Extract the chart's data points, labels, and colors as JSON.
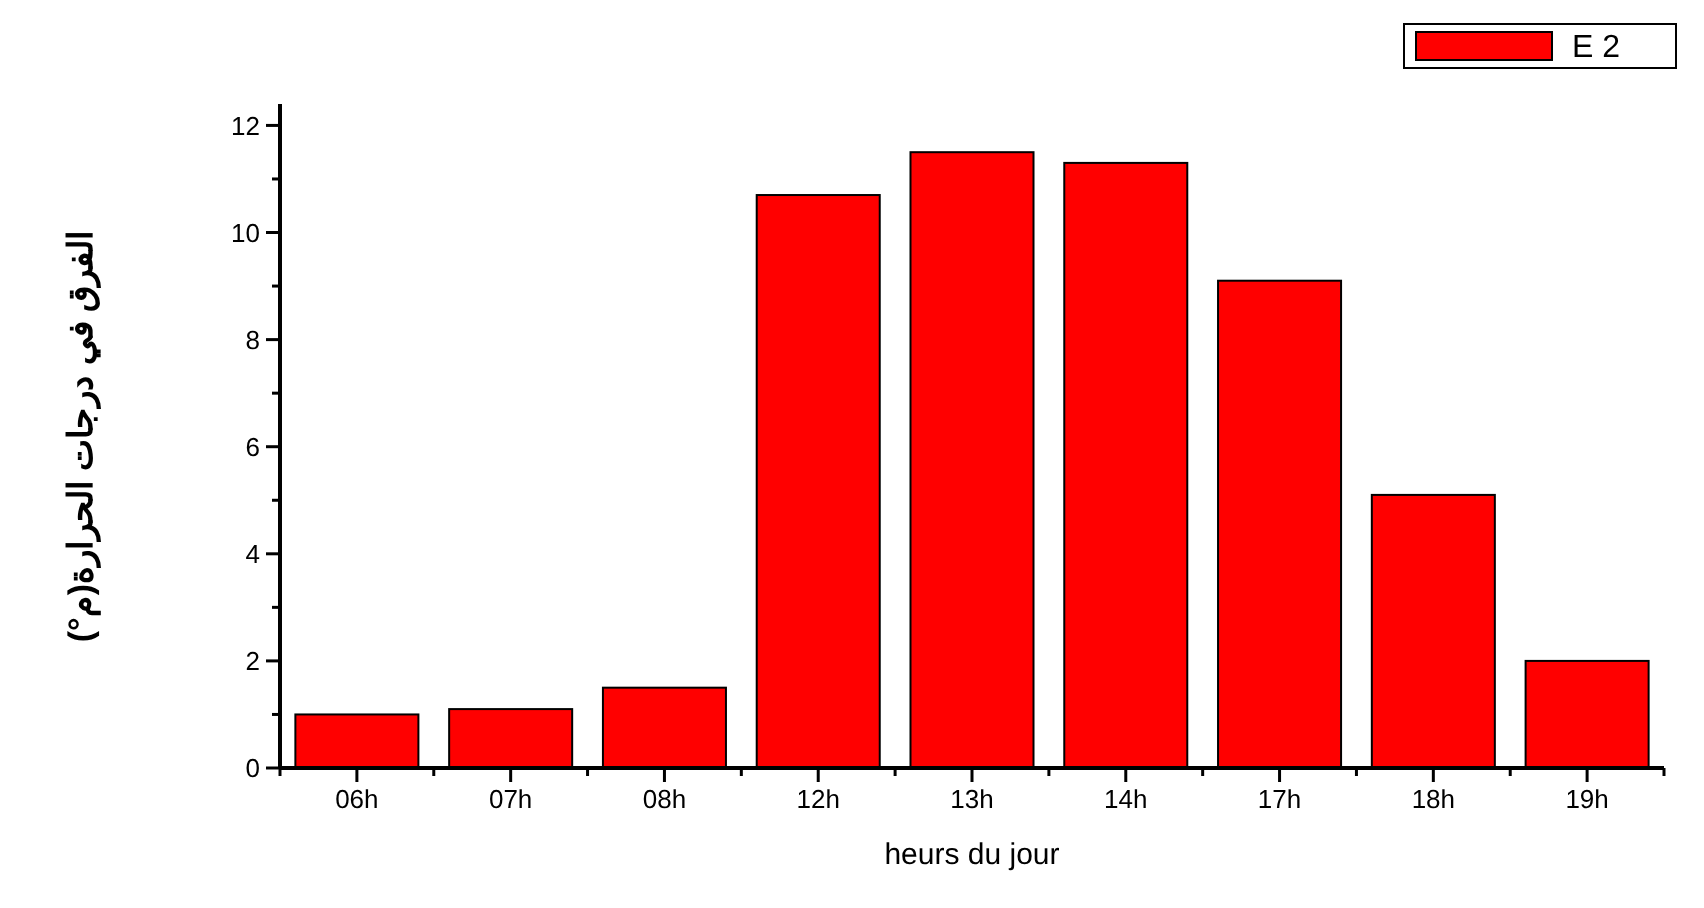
{
  "chart_data": {
    "type": "bar",
    "xlabel": "heurs du jour",
    "ylabel": "الفرق في درجات الحرارة(م°)",
    "categories": [
      "06h",
      "07h",
      "08h",
      "12h",
      "13h",
      "14h",
      "17h",
      "18h",
      "19h"
    ],
    "series": [
      {
        "name": "E 2",
        "color": "#ff0000",
        "values": [
          1.0,
          1.1,
          1.5,
          10.7,
          11.5,
          11.3,
          9.1,
          5.1,
          2.0
        ]
      }
    ],
    "ylim": [
      0,
      12.4
    ],
    "yticks": [
      0,
      {
        "value": 1,
        "label": null
      },
      2,
      {
        "value": 3,
        "label": null
      },
      4,
      {
        "value": 5,
        "label": null
      },
      6,
      {
        "value": 7,
        "label": null
      },
      8,
      {
        "value": 9,
        "label": null
      },
      10,
      {
        "value": 11,
        "label": null
      },
      12
    ],
    "grid": false,
    "legend": "top right"
  }
}
